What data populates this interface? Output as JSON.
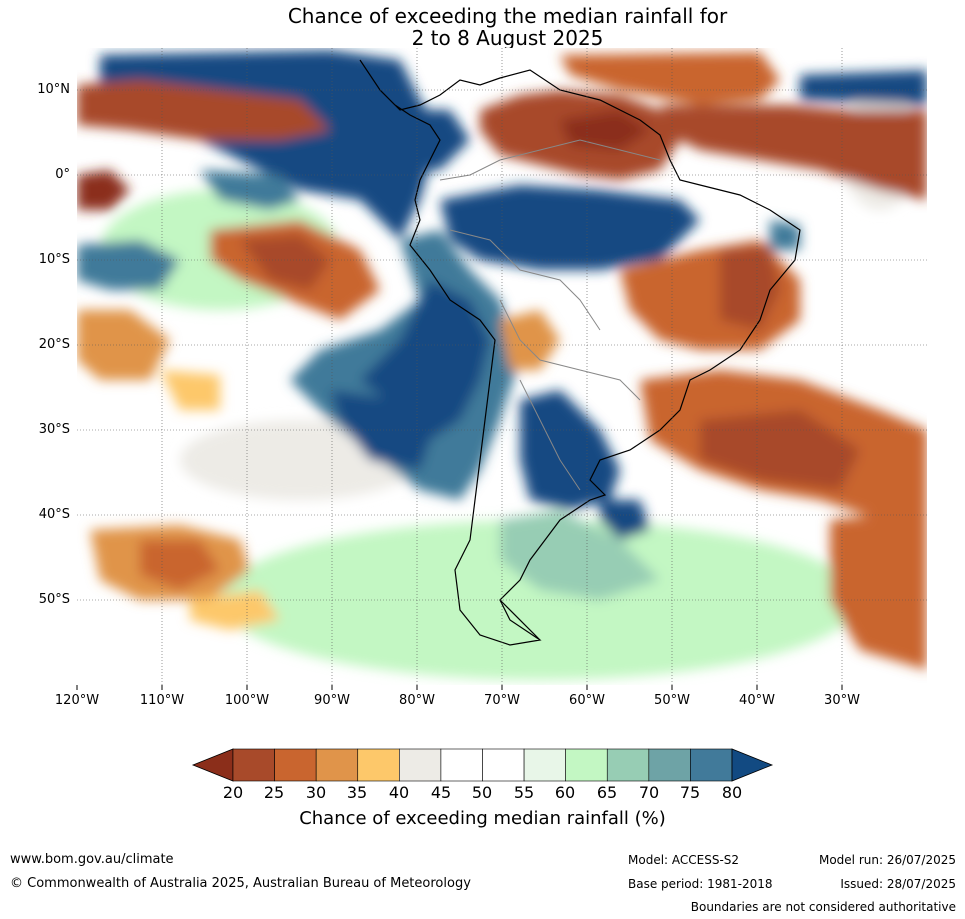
{
  "title": {
    "line1": "Chance of exceeding the median rainfall for",
    "line2": "2 to 8 August 2025"
  },
  "map": {
    "lat_labels": [
      "10°N",
      "0°",
      "10°S",
      "20°S",
      "30°S",
      "40°S",
      "50°S"
    ],
    "lon_labels": [
      "120°W",
      "110°W",
      "100°W",
      "90°W",
      "80°W",
      "70°W",
      "60°W",
      "50°W",
      "40°W",
      "30°W"
    ],
    "extent": {
      "lon": [
        -120,
        -20
      ],
      "lat": [
        -60,
        15
      ]
    }
  },
  "colorbar": {
    "ticks": [
      "20",
      "25",
      "30",
      "35",
      "40",
      "45",
      "50",
      "55",
      "60",
      "65",
      "70",
      "75",
      "80"
    ],
    "colors": [
      "#8b2e1a",
      "#a84a2a",
      "#c9652f",
      "#e0944a",
      "#fdc86a",
      "#edebe6",
      "#ffffff",
      "#ffffff",
      "#e8f6e8",
      "#c3f7c3",
      "#97cdb4",
      "#6ea3a6",
      "#417a9a",
      "#124a82"
    ],
    "title": "Chance of exceeding median rainfall (%)"
  },
  "footer": {
    "url": "www.bom.gov.au/climate",
    "copyright": "© Commonwealth of Australia 2025, Australian Bureau of Meteorology",
    "model": "Model: ACCESS-S2",
    "model_run": "Model run: 26/07/2025",
    "base_period": "Base period: 1981-2018",
    "issued": "Issued: 28/07/2025",
    "disclaimer": "Boundaries are not considered authoritative"
  }
}
